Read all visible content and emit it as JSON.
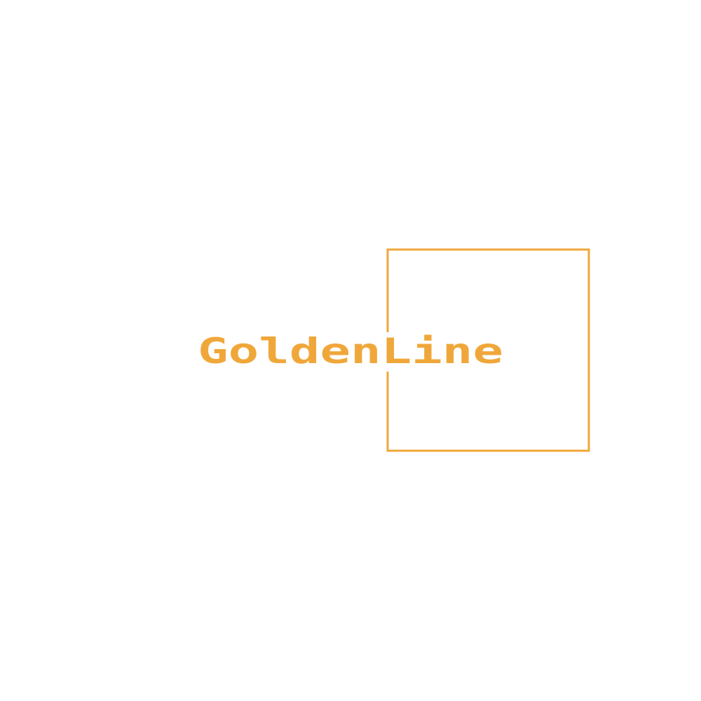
{
  "brand": {
    "name": "GoldenLine",
    "accent_color": "#F0A73A",
    "background_color": "#FFFFFF"
  }
}
